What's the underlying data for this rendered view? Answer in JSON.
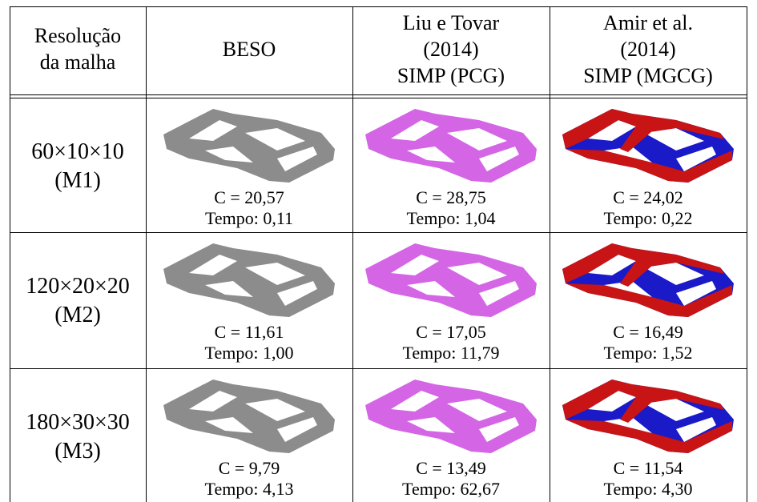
{
  "table": {
    "header": [
      [
        "Resolução",
        "da malha"
      ],
      [
        "BESO"
      ],
      [
        "Liu e Tovar",
        "(2014)",
        "SIMP (PCG)"
      ],
      [
        "Amir et al.",
        "(2014)",
        "SIMP (MGCG)"
      ]
    ],
    "rows": [
      {
        "mesh": [
          "60×10×10",
          "(M1)"
        ],
        "results": [
          {
            "compliance": "C = 20,57",
            "time": "Tempo: 0,11"
          },
          {
            "compliance": "C = 28,75",
            "time": "Tempo: 1,04"
          },
          {
            "compliance": "C = 24,02",
            "time": "Tempo: 0,22"
          }
        ]
      },
      {
        "mesh": [
          "120×20×20",
          "(M2)"
        ],
        "results": [
          {
            "compliance": "C = 11,61",
            "time": "Tempo: 1,00"
          },
          {
            "compliance": "C = 17,05",
            "time": "Tempo: 11,79"
          },
          {
            "compliance": "C = 16,49",
            "time": "Tempo: 1,52"
          }
        ]
      },
      {
        "mesh": [
          "180×30×30",
          "(M3)"
        ],
        "results": [
          {
            "compliance": "C = 9,79",
            "time": "Tempo: 4,13"
          },
          {
            "compliance": "C = 13,49",
            "time": "Tempo: 62,67"
          },
          {
            "compliance": "C = 11,54",
            "time": "Tempo: 4,30"
          }
        ]
      }
    ]
  }
}
